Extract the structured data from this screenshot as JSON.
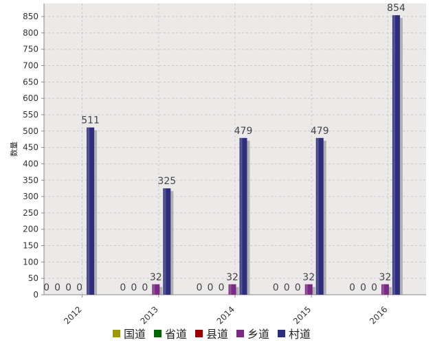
{
  "chart_data": {
    "type": "bar",
    "title": "",
    "xlabel": "",
    "ylabel": "数量",
    "categories": [
      "2012",
      "2013",
      "2014",
      "2015",
      "2016"
    ],
    "ylim": [
      0,
      890
    ],
    "yticks": [
      0,
      50,
      100,
      150,
      200,
      250,
      300,
      350,
      400,
      450,
      500,
      550,
      600,
      650,
      700,
      750,
      800,
      850
    ],
    "grid": true,
    "legend_position": "bottom",
    "series": [
      {
        "name": "国道",
        "color": "#999900",
        "values": [
          0,
          0,
          0,
          0,
          0
        ]
      },
      {
        "name": "省道",
        "color": "#006600",
        "values": [
          0,
          0,
          0,
          0,
          0
        ]
      },
      {
        "name": "县道",
        "color": "#990000",
        "values": [
          0,
          0,
          0,
          0,
          0
        ]
      },
      {
        "name": "乡道",
        "color": "#7a2a82",
        "values": [
          0,
          32,
          32,
          32,
          32
        ]
      },
      {
        "name": "村道",
        "color": "#2e2e7e",
        "values": [
          511,
          325,
          479,
          479,
          854
        ]
      }
    ],
    "plot_background": "#ece9e9"
  }
}
